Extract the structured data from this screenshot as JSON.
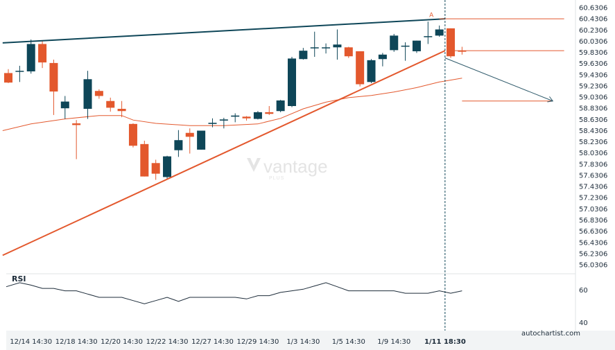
{
  "chart_data": {
    "type": "candlestick",
    "y_axis": {
      "ticks": [
        "60.6306",
        "60.4306",
        "60.2306",
        "60.0306",
        "59.8306",
        "59.6306",
        "59.4306",
        "59.2306",
        "59.0306",
        "58.8306",
        "58.6306",
        "58.4306",
        "58.2306",
        "58.0306",
        "57.8306",
        "57.6306",
        "57.4306",
        "57.2306",
        "57.0306",
        "56.8306",
        "56.6306",
        "56.4306",
        "56.2306",
        "56.0306"
      ],
      "range": [
        55.87,
        60.68
      ]
    },
    "x_axis": {
      "labels": [
        "12/14 14:30",
        "12/18 14:30",
        "12/20 14:30",
        "12/22 14:30",
        "12/27 14:30",
        "12/29 14:30",
        "1/3 14:30",
        "1/5 14:30",
        "1/9 14:30",
        "1/11 18:30"
      ],
      "label_bar_index": [
        2,
        6,
        10,
        14,
        18,
        22,
        26,
        30,
        34,
        38
      ],
      "active_label": "1/11 18:30"
    },
    "candles": [
      {
        "o": 59.46,
        "h": 59.53,
        "l": 59.28,
        "c": 59.29
      },
      {
        "o": 59.5,
        "h": 59.59,
        "l": 59.3,
        "c": 59.5
      },
      {
        "o": 59.49,
        "h": 60.06,
        "l": 59.45,
        "c": 59.98
      },
      {
        "o": 59.98,
        "h": 60.03,
        "l": 59.55,
        "c": 59.65
      },
      {
        "o": 59.64,
        "h": 59.7,
        "l": 58.71,
        "c": 59.13
      },
      {
        "o": 58.83,
        "h": 59.05,
        "l": 58.64,
        "c": 58.95
      },
      {
        "o": 58.56,
        "h": 58.62,
        "l": 57.92,
        "c": 58.53
      },
      {
        "o": 58.82,
        "h": 59.5,
        "l": 58.64,
        "c": 59.35
      },
      {
        "o": 59.14,
        "h": 59.17,
        "l": 59.0,
        "c": 59.05
      },
      {
        "o": 58.96,
        "h": 59.02,
        "l": 58.77,
        "c": 58.84
      },
      {
        "o": 58.82,
        "h": 58.96,
        "l": 58.67,
        "c": 58.78
      },
      {
        "o": 58.55,
        "h": 58.56,
        "l": 58.13,
        "c": 58.16
      },
      {
        "o": 58.19,
        "h": 58.25,
        "l": 57.61,
        "c": 57.61
      },
      {
        "o": 57.85,
        "h": 57.91,
        "l": 57.55,
        "c": 57.66
      },
      {
        "o": 57.6,
        "h": 57.98,
        "l": 57.57,
        "c": 57.97
      },
      {
        "o": 58.08,
        "h": 58.44,
        "l": 57.96,
        "c": 58.26
      },
      {
        "o": 58.39,
        "h": 58.47,
        "l": 58.02,
        "c": 58.32
      },
      {
        "o": 58.09,
        "h": 58.43,
        "l": 58.09,
        "c": 58.43
      },
      {
        "o": 58.55,
        "h": 58.65,
        "l": 58.49,
        "c": 58.57
      },
      {
        "o": 58.61,
        "h": 58.66,
        "l": 58.47,
        "c": 58.63
      },
      {
        "o": 58.68,
        "h": 58.74,
        "l": 58.58,
        "c": 58.7
      },
      {
        "o": 58.68,
        "h": 58.69,
        "l": 58.61,
        "c": 58.65
      },
      {
        "o": 58.64,
        "h": 58.78,
        "l": 58.63,
        "c": 58.76
      },
      {
        "o": 58.76,
        "h": 58.87,
        "l": 58.71,
        "c": 58.73
      },
      {
        "o": 58.78,
        "h": 58.98,
        "l": 58.76,
        "c": 58.97
      },
      {
        "o": 58.87,
        "h": 59.75,
        "l": 58.85,
        "c": 59.72
      },
      {
        "o": 59.71,
        "h": 59.91,
        "l": 59.7,
        "c": 59.86
      },
      {
        "o": 59.91,
        "h": 60.2,
        "l": 59.75,
        "c": 59.92
      },
      {
        "o": 59.91,
        "h": 59.99,
        "l": 59.81,
        "c": 59.92
      },
      {
        "o": 59.92,
        "h": 60.24,
        "l": 59.7,
        "c": 59.97
      },
      {
        "o": 59.92,
        "h": 59.93,
        "l": 59.73,
        "c": 59.76
      },
      {
        "o": 59.85,
        "h": 59.85,
        "l": 59.22,
        "c": 59.26
      },
      {
        "o": 59.3,
        "h": 59.71,
        "l": 59.28,
        "c": 59.69
      },
      {
        "o": 59.71,
        "h": 59.82,
        "l": 59.58,
        "c": 59.79
      },
      {
        "o": 59.87,
        "h": 60.16,
        "l": 59.84,
        "c": 60.13
      },
      {
        "o": 59.95,
        "h": 60.01,
        "l": 59.68,
        "c": 59.95
      },
      {
        "o": 59.85,
        "h": 60.04,
        "l": 59.82,
        "c": 60.04
      },
      {
        "o": 60.12,
        "h": 60.38,
        "l": 59.98,
        "c": 60.12
      },
      {
        "o": 60.13,
        "h": 60.31,
        "l": 60.11,
        "c": 60.24
      },
      {
        "o": 60.26,
        "h": 60.26,
        "l": 59.73,
        "c": 59.76
      },
      {
        "o": 59.86,
        "h": 59.93,
        "l": 59.79,
        "c": 59.85
      }
    ],
    "moving_average": [
      {
        "x": -0.5,
        "y": 58.43
      },
      {
        "x": 2,
        "y": 58.55
      },
      {
        "x": 5,
        "y": 58.64
      },
      {
        "x": 8,
        "y": 58.7
      },
      {
        "x": 10,
        "y": 58.7
      },
      {
        "x": 11,
        "y": 58.62
      },
      {
        "x": 13,
        "y": 58.56
      },
      {
        "x": 16,
        "y": 58.52
      },
      {
        "x": 19,
        "y": 58.52
      },
      {
        "x": 22,
        "y": 58.55
      },
      {
        "x": 24,
        "y": 58.65
      },
      {
        "x": 26,
        "y": 58.82
      },
      {
        "x": 28,
        "y": 58.94
      },
      {
        "x": 30,
        "y": 59.02
      },
      {
        "x": 32,
        "y": 59.06
      },
      {
        "x": 34,
        "y": 59.12
      },
      {
        "x": 36,
        "y": 59.2
      },
      {
        "x": 38,
        "y": 59.3
      },
      {
        "x": 40,
        "y": 59.37
      }
    ],
    "resistance_line": [
      {
        "x": -0.5,
        "y": 60.0
      },
      {
        "x": 38.5,
        "y": 60.43
      }
    ],
    "support_line": [
      {
        "x": -0.5,
        "y": 56.2
      },
      {
        "x": 38.5,
        "y": 59.86
      }
    ],
    "levels": [
      {
        "from_x": 38,
        "to_x": 49,
        "y": 60.43
      },
      {
        "from_x": 39,
        "to_x": 49,
        "y": 59.86
      },
      {
        "from_x": 40,
        "to_x": 48,
        "y": 58.96
      }
    ],
    "projection": {
      "from": {
        "x": 38.5,
        "y": 59.73
      },
      "to": {
        "x": 48,
        "y": 58.96
      }
    },
    "pattern_label": {
      "text": "A",
      "x": 37.3,
      "y": 60.46
    },
    "event_marker_x": 38.5,
    "rsi": {
      "label": "RSI",
      "ticks": [
        "60",
        "40"
      ],
      "range": [
        35,
        70
      ],
      "values": [
        62.0,
        64.5,
        63.0,
        61.0,
        61.0,
        59.5,
        59.5,
        57.5,
        55.5,
        55.5,
        55.5,
        53.5,
        51.5,
        53.5,
        55.5,
        53.0,
        55.5,
        55.5,
        55.5,
        55.5,
        55.5,
        54.5,
        56.5,
        56.5,
        58.5,
        59.5,
        60.5,
        62.5,
        64.5,
        62.0,
        59.5,
        59.5,
        59.5,
        59.5,
        59.5,
        58.0,
        58.0,
        58.0,
        59.5,
        58.0,
        59.5
      ]
    },
    "colors": {
      "bull": "#0e4658",
      "bear": "#e3582d",
      "axis_text": "#1c2b39",
      "grid_border": "#dfe3e6"
    }
  },
  "watermark": {
    "brand": "vantage",
    "sub": "PLUS"
  },
  "source": "autochartist.com"
}
